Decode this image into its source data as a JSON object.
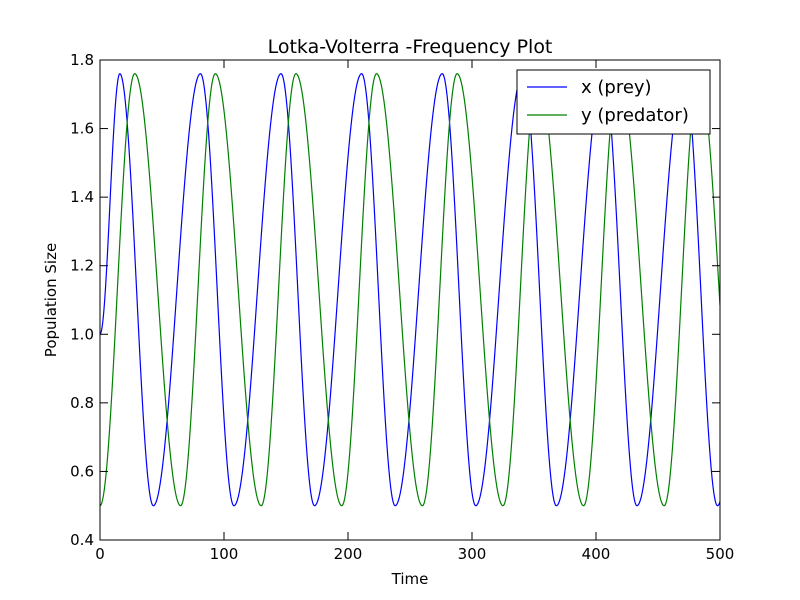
{
  "chart_data": {
    "type": "line",
    "title": "Lotka-Volterra -Frequency Plot",
    "xlabel": "Time",
    "ylabel": "Population Size",
    "xlim": [
      0,
      500
    ],
    "ylim": [
      0.4,
      1.8
    ],
    "xticks": [
      0,
      100,
      200,
      300,
      400,
      500
    ],
    "xtick_labels": [
      "0",
      "100",
      "200",
      "300",
      "400",
      "500"
    ],
    "yticks": [
      0.4,
      0.6,
      0.8,
      1.0,
      1.2,
      1.4,
      1.6,
      1.8
    ],
    "ytick_labels": [
      "0.4",
      "0.6",
      "0.8",
      "1.0",
      "1.2",
      "1.4",
      "1.6",
      "1.8"
    ],
    "grid": false,
    "legend_position": "top-right",
    "period": 65,
    "series": [
      {
        "name": "x (prey)",
        "color": "#0000ff",
        "min": 0.5,
        "max": 1.76,
        "start": 1.0,
        "peak_times": [
          16,
          81,
          146,
          211,
          276,
          341,
          406,
          471
        ],
        "trough_times": [
          43,
          108,
          173,
          238,
          303,
          368,
          433,
          498
        ]
      },
      {
        "name": "y (predator)",
        "color": "#008000",
        "min": 0.5,
        "max": 1.76,
        "start": 0.5,
        "peak_times": [
          28,
          93,
          158,
          223,
          288,
          353,
          418,
          483
        ],
        "trough_times": [
          0,
          65,
          130,
          195,
          260,
          325,
          390,
          455
        ]
      }
    ]
  }
}
